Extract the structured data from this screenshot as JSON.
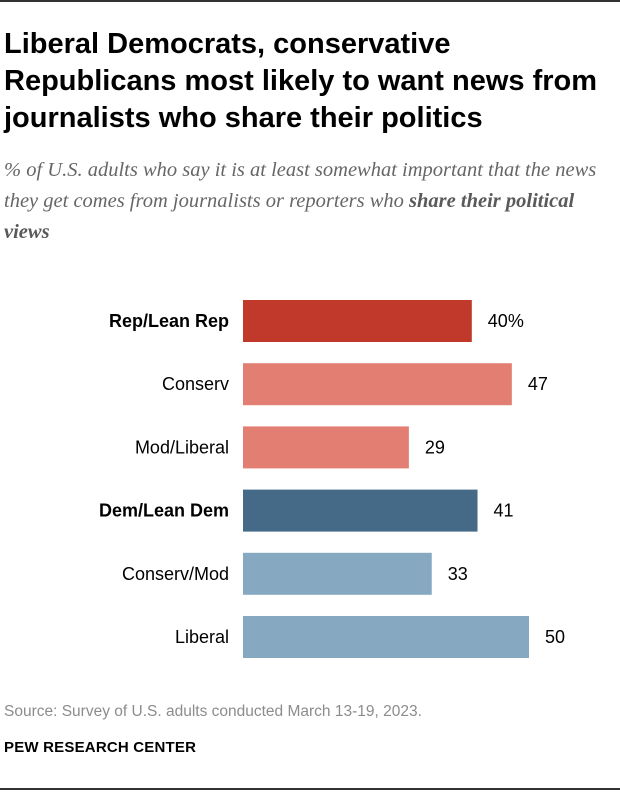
{
  "title": "Liberal Democrats, conservative Republicans most likely to want news from journalists who share their politics",
  "subtitle": {
    "text": "% of U.S. adults who say it is at least somewhat important that the news they get comes from journalists or reporters who",
    "emphasis": "share their political views"
  },
  "chart_data": {
    "type": "bar",
    "orientation": "horizontal",
    "categories": [
      "Rep/Lean Rep",
      "Conserv",
      "Mod/Liberal",
      "Dem/Lean Dem",
      "Conserv/Mod",
      "Liberal"
    ],
    "values": [
      40,
      47,
      29,
      41,
      33,
      50
    ],
    "value_labels": [
      "40%",
      "47",
      "29",
      "41",
      "33",
      "50"
    ],
    "bold_categories": [
      "Rep/Lean Rep",
      "Dem/Lean Dem"
    ],
    "colors": [
      "#c0392b",
      "#e27f72",
      "#e27f72",
      "#456a87",
      "#86a9c1",
      "#86a9c1"
    ],
    "xlim": [
      0,
      100
    ],
    "title": "Liberal Democrats, conservative Republicans most likely to want news from journalists who share their politics",
    "xlabel": "",
    "ylabel": ""
  },
  "source": "Source: Survey of U.S. adults conducted March 13-19, 2023.",
  "organization": "PEW RESEARCH CENTER"
}
